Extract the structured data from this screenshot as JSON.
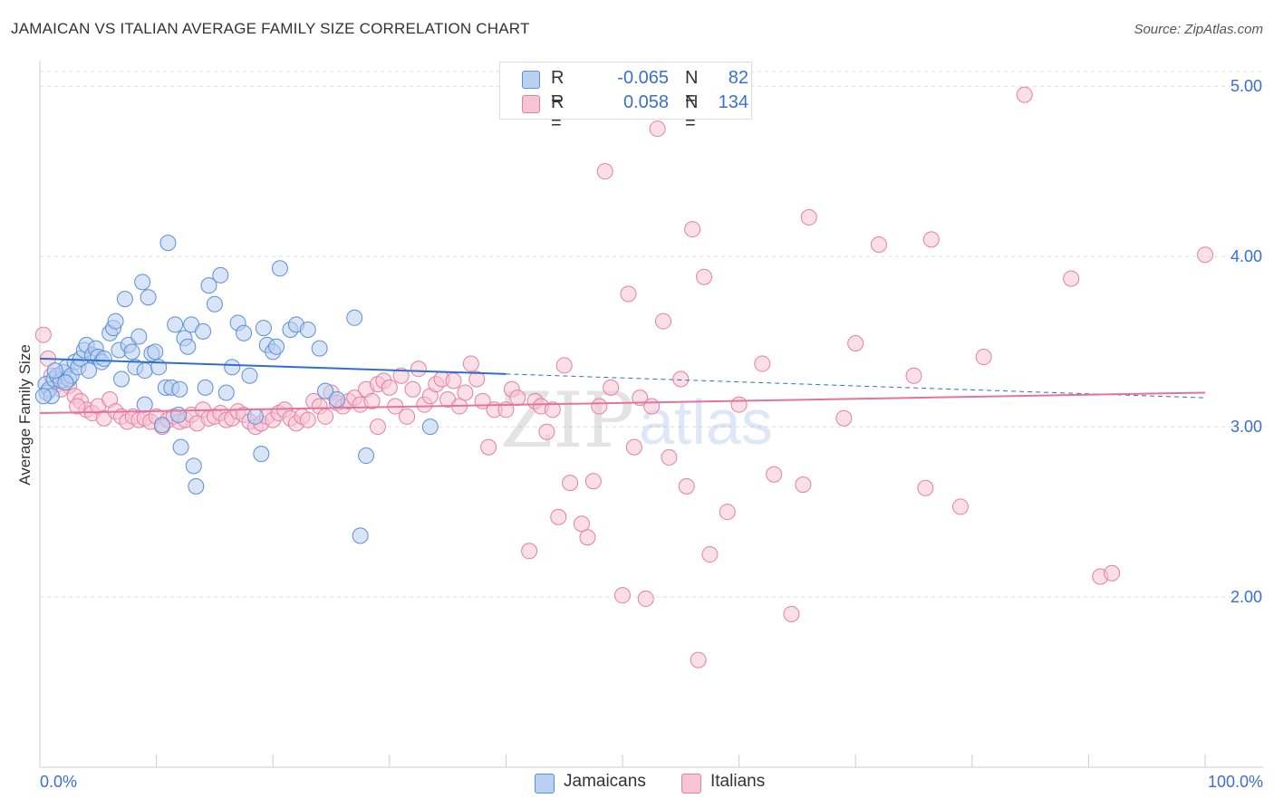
{
  "title": "JAMAICAN VS ITALIAN AVERAGE FAMILY SIZE CORRELATION CHART",
  "source": "Source: ZipAtlas.com",
  "colors": {
    "blue": "#5b8fd8",
    "blue_fill": "#b9d0f1",
    "blue_line": "#2f6fcc",
    "pink": "#e57fa3",
    "pink_fill": "#f6c4d4",
    "pink_line": "#e5739b",
    "tick_label": "#3b6fd1",
    "grid": "#dddddd"
  },
  "legend": {
    "rows": [
      {
        "r_label": "R =",
        "r_value": "-0.065",
        "n_label": "N =",
        "n_value": "82"
      },
      {
        "r_label": "R =",
        "r_value": "0.058",
        "n_label": "N =",
        "n_value": "134"
      }
    ]
  },
  "bottom_legend": {
    "jamaicans": "Jamaicans",
    "italians": "Italians"
  },
  "chart_data": {
    "type": "scatter",
    "title": "JAMAICAN VS ITALIAN AVERAGE FAMILY SIZE CORRELATION CHART",
    "xlabel": "",
    "ylabel": "Average Family Size",
    "xlim": [
      0,
      100
    ],
    "ylim": [
      1.0,
      5.15
    ],
    "x_tick_labels": [
      "0.0%",
      "100.0%"
    ],
    "y_ticks": [
      2.0,
      3.0,
      4.0,
      5.0
    ],
    "y_tick_labels": [
      "2.00",
      "3.00",
      "4.00",
      "5.00"
    ],
    "watermark": {
      "zip": "ZIP",
      "atlas": "atlas"
    },
    "series": [
      {
        "name": "Jamaicans",
        "trend": {
          "x0": 0,
          "y0": 3.4,
          "x1": 40,
          "y1": 3.31,
          "dash_to_x": 100,
          "dash_to_y": 3.17
        },
        "points": [
          [
            0.5,
            3.25
          ],
          [
            0.6,
            3.2
          ],
          [
            0.8,
            3.22
          ],
          [
            1.0,
            3.18
          ],
          [
            1.2,
            3.28
          ],
          [
            1.5,
            3.3
          ],
          [
            1.8,
            3.27
          ],
          [
            2.0,
            3.32
          ],
          [
            2.3,
            3.35
          ],
          [
            2.5,
            3.28
          ],
          [
            2.7,
            3.3
          ],
          [
            3.0,
            3.38
          ],
          [
            3.3,
            3.35
          ],
          [
            3.5,
            3.4
          ],
          [
            3.8,
            3.45
          ],
          [
            4.0,
            3.48
          ],
          [
            4.2,
            3.33
          ],
          [
            4.5,
            3.42
          ],
          [
            4.8,
            3.46
          ],
          [
            5.0,
            3.41
          ],
          [
            5.3,
            3.38
          ],
          [
            5.5,
            3.4
          ],
          [
            6.0,
            3.55
          ],
          [
            6.3,
            3.58
          ],
          [
            6.5,
            3.62
          ],
          [
            6.8,
            3.45
          ],
          [
            7.0,
            3.28
          ],
          [
            7.3,
            3.75
          ],
          [
            7.6,
            3.48
          ],
          [
            7.9,
            3.44
          ],
          [
            8.2,
            3.35
          ],
          [
            8.5,
            3.53
          ],
          [
            8.8,
            3.85
          ],
          [
            9.0,
            3.33
          ],
          [
            9.3,
            3.76
          ],
          [
            9.6,
            3.43
          ],
          [
            9.9,
            3.44
          ],
          [
            10.2,
            3.35
          ],
          [
            10.5,
            3.01
          ],
          [
            10.8,
            3.23
          ],
          [
            11.0,
            4.08
          ],
          [
            11.3,
            3.23
          ],
          [
            11.6,
            3.6
          ],
          [
            11.9,
            3.07
          ],
          [
            12.1,
            2.88
          ],
          [
            12.4,
            3.52
          ],
          [
            12.7,
            3.47
          ],
          [
            13.0,
            3.6
          ],
          [
            13.2,
            2.77
          ],
          [
            13.4,
            2.65
          ],
          [
            14.0,
            3.56
          ],
          [
            14.2,
            3.23
          ],
          [
            14.5,
            3.83
          ],
          [
            15.0,
            3.72
          ],
          [
            15.5,
            3.89
          ],
          [
            16.0,
            3.2
          ],
          [
            16.5,
            3.35
          ],
          [
            17.0,
            3.61
          ],
          [
            17.5,
            3.55
          ],
          [
            18.0,
            3.3
          ],
          [
            18.5,
            3.06
          ],
          [
            19.0,
            2.84
          ],
          [
            19.5,
            3.48
          ],
          [
            20.0,
            3.44
          ],
          [
            20.3,
            3.47
          ],
          [
            20.6,
            3.93
          ],
          [
            21.5,
            3.57
          ],
          [
            22.0,
            3.6
          ],
          [
            23.0,
            3.57
          ],
          [
            24.0,
            3.46
          ],
          [
            24.5,
            3.21
          ],
          [
            25.5,
            3.16
          ],
          [
            27.0,
            3.64
          ],
          [
            27.5,
            2.36
          ],
          [
            28.0,
            2.83
          ],
          [
            33.5,
            3.0
          ],
          [
            0.3,
            3.18
          ],
          [
            1.3,
            3.33
          ],
          [
            2.2,
            3.26
          ],
          [
            9.0,
            3.13
          ],
          [
            12.0,
            3.22
          ],
          [
            19.2,
            3.58
          ]
        ]
      },
      {
        "name": "Italians",
        "trend": {
          "x0": 0,
          "y0": 3.08,
          "x1": 100,
          "y1": 3.2
        },
        "points": [
          [
            0.3,
            3.54
          ],
          [
            0.7,
            3.4
          ],
          [
            1.0,
            3.3
          ],
          [
            1.5,
            3.25
          ],
          [
            2.0,
            3.27
          ],
          [
            2.5,
            3.24
          ],
          [
            3.0,
            3.18
          ],
          [
            3.5,
            3.15
          ],
          [
            4.0,
            3.1
          ],
          [
            4.5,
            3.08
          ],
          [
            5.0,
            3.12
          ],
          [
            5.5,
            3.05
          ],
          [
            6.0,
            3.16
          ],
          [
            6.5,
            3.09
          ],
          [
            7.0,
            3.06
          ],
          [
            7.5,
            3.03
          ],
          [
            8.0,
            3.06
          ],
          [
            8.5,
            3.04
          ],
          [
            9.0,
            3.05
          ],
          [
            9.5,
            3.03
          ],
          [
            10.0,
            3.06
          ],
          [
            10.5,
            3.0
          ],
          [
            11.0,
            3.04
          ],
          [
            11.5,
            3.06
          ],
          [
            12.0,
            3.03
          ],
          [
            12.5,
            3.04
          ],
          [
            13.0,
            3.07
          ],
          [
            13.5,
            3.02
          ],
          [
            14.0,
            3.1
          ],
          [
            14.5,
            3.05
          ],
          [
            15.0,
            3.06
          ],
          [
            15.5,
            3.08
          ],
          [
            16.0,
            3.04
          ],
          [
            16.5,
            3.05
          ],
          [
            17.0,
            3.09
          ],
          [
            17.5,
            3.07
          ],
          [
            18.0,
            3.03
          ],
          [
            18.5,
            3.0
          ],
          [
            19.0,
            3.02
          ],
          [
            19.5,
            3.06
          ],
          [
            20.0,
            3.04
          ],
          [
            20.5,
            3.08
          ],
          [
            21.0,
            3.1
          ],
          [
            21.5,
            3.05
          ],
          [
            22.0,
            3.02
          ],
          [
            22.5,
            3.06
          ],
          [
            23.0,
            3.04
          ],
          [
            23.5,
            3.15
          ],
          [
            24.0,
            3.12
          ],
          [
            24.5,
            3.06
          ],
          [
            25.0,
            3.2
          ],
          [
            25.5,
            3.14
          ],
          [
            26.0,
            3.12
          ],
          [
            26.5,
            3.15
          ],
          [
            27.0,
            3.17
          ],
          [
            27.5,
            3.13
          ],
          [
            28.0,
            3.22
          ],
          [
            28.5,
            3.15
          ],
          [
            29.0,
            3.25
          ],
          [
            29.5,
            3.27
          ],
          [
            30.0,
            3.23
          ],
          [
            30.5,
            3.12
          ],
          [
            31.0,
            3.3
          ],
          [
            31.5,
            3.06
          ],
          [
            32.0,
            3.22
          ],
          [
            32.5,
            3.34
          ],
          [
            33.0,
            3.13
          ],
          [
            33.5,
            3.18
          ],
          [
            34.0,
            3.25
          ],
          [
            34.5,
            3.28
          ],
          [
            35.0,
            3.16
          ],
          [
            35.5,
            3.27
          ],
          [
            36.0,
            3.12
          ],
          [
            36.5,
            3.2
          ],
          [
            37.0,
            3.37
          ],
          [
            38.0,
            3.15
          ],
          [
            38.5,
            2.88
          ],
          [
            39.0,
            3.1
          ],
          [
            40.0,
            3.1
          ],
          [
            40.5,
            3.22
          ],
          [
            41.0,
            3.17
          ],
          [
            42.0,
            2.27
          ],
          [
            42.5,
            3.15
          ],
          [
            43.0,
            3.12
          ],
          [
            43.5,
            2.97
          ],
          [
            44.0,
            3.1
          ],
          [
            44.5,
            2.47
          ],
          [
            45.0,
            3.36
          ],
          [
            45.5,
            2.67
          ],
          [
            46.5,
            2.43
          ],
          [
            47.0,
            2.35
          ],
          [
            47.5,
            2.68
          ],
          [
            48.0,
            3.12
          ],
          [
            48.5,
            4.5
          ],
          [
            49.0,
            3.23
          ],
          [
            50.0,
            2.01
          ],
          [
            50.5,
            3.78
          ],
          [
            51.0,
            2.88
          ],
          [
            51.5,
            3.17
          ],
          [
            52.0,
            1.99
          ],
          [
            53.0,
            4.75
          ],
          [
            53.5,
            3.62
          ],
          [
            54.0,
            2.82
          ],
          [
            55.0,
            3.28
          ],
          [
            55.5,
            2.65
          ],
          [
            56.0,
            4.16
          ],
          [
            56.5,
            1.63
          ],
          [
            57.0,
            3.88
          ],
          [
            57.5,
            2.25
          ],
          [
            59.0,
            2.5
          ],
          [
            60.0,
            3.13
          ],
          [
            62.0,
            3.37
          ],
          [
            63.0,
            2.72
          ],
          [
            64.5,
            1.9
          ],
          [
            65.5,
            2.66
          ],
          [
            66.0,
            4.23
          ],
          [
            69.0,
            3.05
          ],
          [
            70.0,
            3.49
          ],
          [
            72.0,
            4.07
          ],
          [
            75.0,
            3.3
          ],
          [
            76.0,
            2.64
          ],
          [
            76.5,
            4.1
          ],
          [
            79.0,
            2.53
          ],
          [
            81.0,
            3.41
          ],
          [
            84.5,
            4.95
          ],
          [
            88.5,
            3.87
          ],
          [
            91.0,
            2.12
          ],
          [
            92.0,
            2.14
          ],
          [
            100.0,
            4.01
          ],
          [
            1.8,
            3.22
          ],
          [
            3.2,
            3.12
          ],
          [
            29.0,
            3.0
          ],
          [
            37.5,
            3.28
          ],
          [
            52.5,
            3.12
          ]
        ]
      }
    ]
  }
}
